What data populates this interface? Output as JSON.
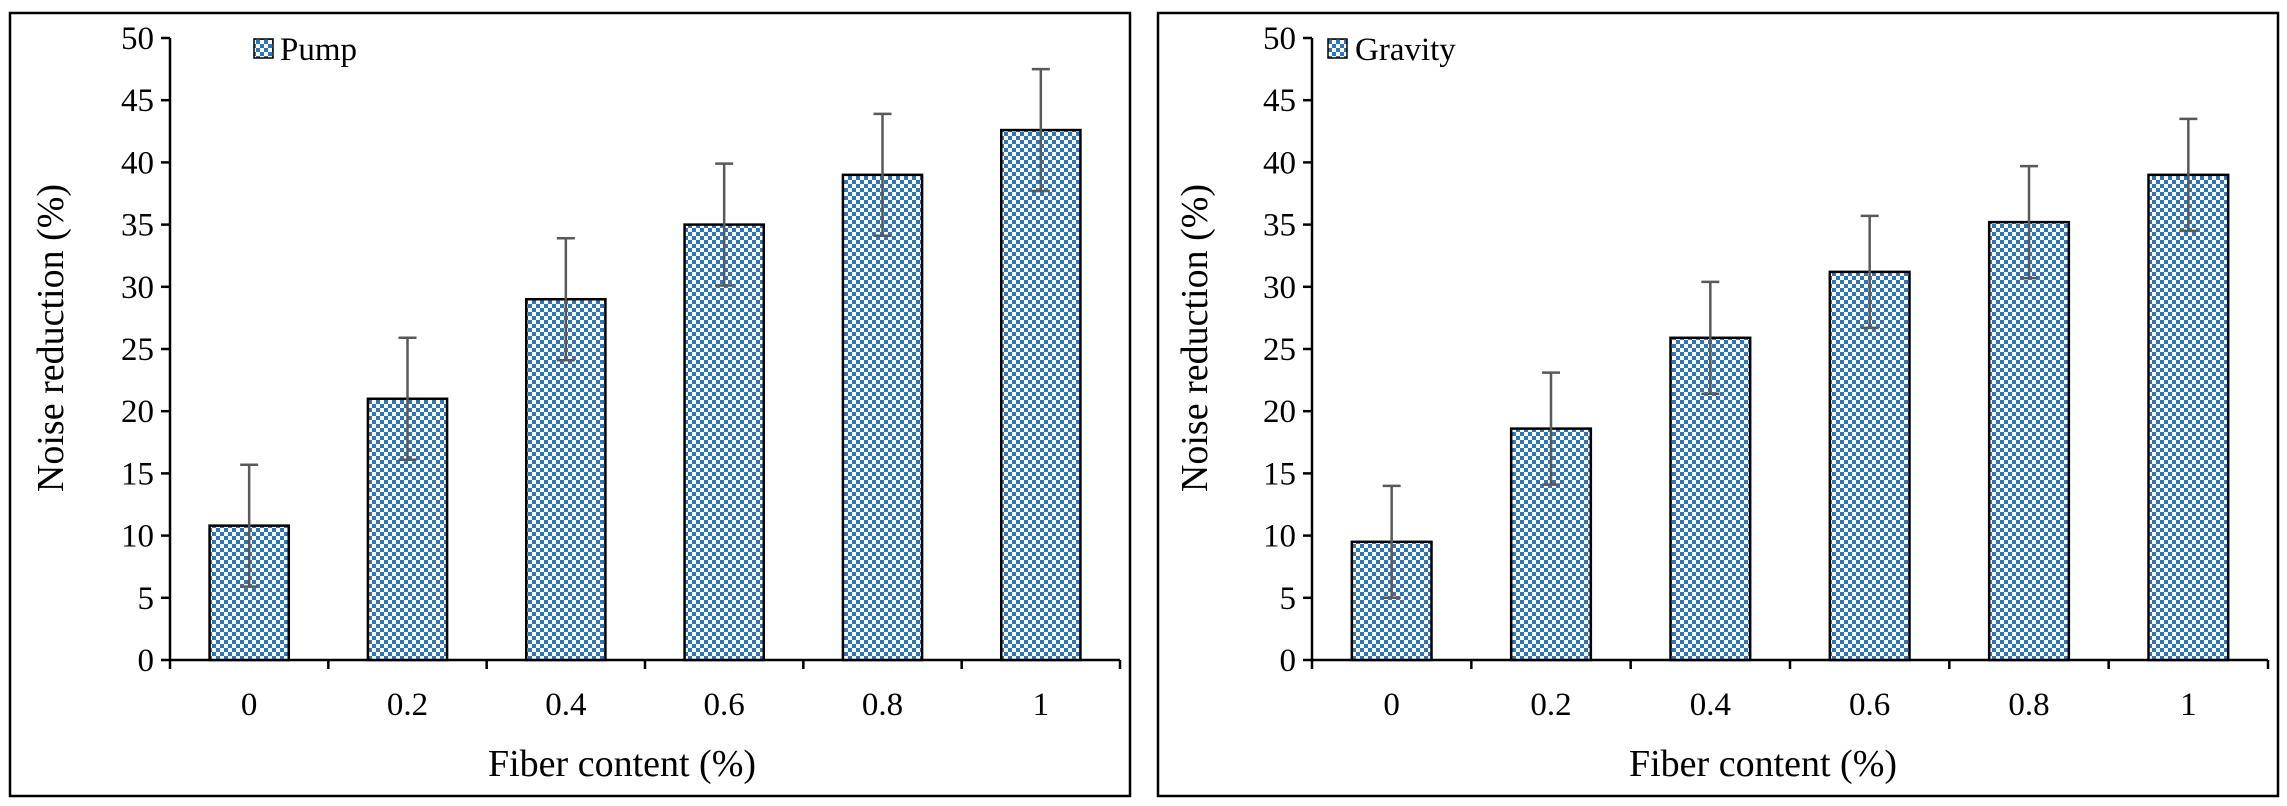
{
  "chart_data": [
    {
      "type": "bar",
      "legend": "Pump",
      "categories": [
        "0",
        "0.2",
        "0.4",
        "0.6",
        "0.8",
        "1"
      ],
      "values": [
        10.8,
        21.0,
        29.0,
        35.0,
        39.0,
        42.6
      ],
      "errors": [
        4.9,
        4.9,
        4.9,
        4.9,
        4.9,
        4.9
      ],
      "xlabel": "Fiber content (%)",
      "ylabel": "Noise reduction (%)",
      "ylim": [
        0,
        50
      ],
      "yticks": [
        "0",
        "5",
        "10",
        "15",
        "20",
        "25",
        "30",
        "35",
        "40",
        "45",
        "50"
      ],
      "legend_position": "top-left",
      "bar_color": "#2e75b6"
    },
    {
      "type": "bar",
      "legend": "Gravity",
      "categories": [
        "0",
        "0.2",
        "0.4",
        "0.6",
        "0.8",
        "1"
      ],
      "values": [
        9.5,
        18.6,
        25.9,
        31.2,
        35.2,
        39.0
      ],
      "errors": [
        4.5,
        4.5,
        4.5,
        4.5,
        4.5,
        4.5
      ],
      "xlabel": "Fiber content (%)",
      "ylabel": "Noise reduction (%)",
      "ylim": [
        0,
        50
      ],
      "yticks": [
        "0",
        "5",
        "10",
        "15",
        "20",
        "25",
        "30",
        "35",
        "40",
        "45",
        "50"
      ],
      "legend_position": "top-left",
      "bar_color": "#2e75b6"
    }
  ]
}
